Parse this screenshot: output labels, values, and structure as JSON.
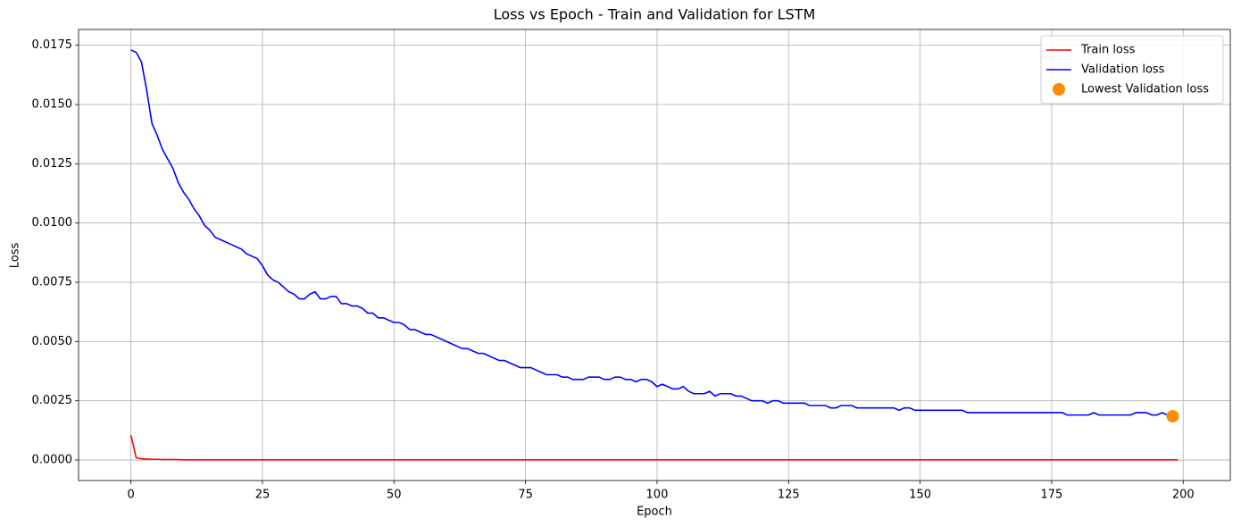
{
  "chart_data": {
    "type": "line",
    "title": "Loss vs Epoch - Train and Validation for LSTM",
    "xlabel": "Epoch",
    "ylabel": "Loss",
    "x": [
      0,
      1,
      2,
      3,
      4,
      5,
      6,
      7,
      8,
      9,
      10,
      11,
      12,
      13,
      14,
      15,
      16,
      17,
      18,
      19,
      20,
      21,
      22,
      23,
      24,
      25,
      26,
      27,
      28,
      29,
      30,
      31,
      32,
      33,
      34,
      35,
      36,
      37,
      38,
      39,
      40,
      41,
      42,
      43,
      44,
      45,
      46,
      47,
      48,
      49,
      50,
      51,
      52,
      53,
      54,
      55,
      56,
      57,
      58,
      59,
      60,
      61,
      62,
      63,
      64,
      65,
      66,
      67,
      68,
      69,
      70,
      71,
      72,
      73,
      74,
      75,
      76,
      77,
      78,
      79,
      80,
      81,
      82,
      83,
      84,
      85,
      86,
      87,
      88,
      89,
      90,
      91,
      92,
      93,
      94,
      95,
      96,
      97,
      98,
      99,
      100,
      101,
      102,
      103,
      104,
      105,
      106,
      107,
      108,
      109,
      110,
      111,
      112,
      113,
      114,
      115,
      116,
      117,
      118,
      119,
      120,
      121,
      122,
      123,
      124,
      125,
      126,
      127,
      128,
      129,
      130,
      131,
      132,
      133,
      134,
      135,
      136,
      137,
      138,
      139,
      140,
      141,
      142,
      143,
      144,
      145,
      146,
      147,
      148,
      149,
      150,
      151,
      152,
      153,
      154,
      155,
      156,
      157,
      158,
      159,
      160,
      161,
      162,
      163,
      164,
      165,
      166,
      167,
      168,
      169,
      170,
      171,
      172,
      173,
      174,
      175,
      176,
      177,
      178,
      179,
      180,
      181,
      182,
      183,
      184,
      185,
      186,
      187,
      188,
      189,
      190,
      191,
      192,
      193,
      194,
      195,
      196,
      197,
      198,
      199
    ],
    "series": [
      {
        "name": "Train loss",
        "color": "#ff0000",
        "values": [
          0.00105,
          0.0001,
          5e-05,
          4e-05,
          3e-05,
          3e-05,
          2e-05,
          2e-05,
          2e-05,
          2e-05,
          1e-05,
          1e-05,
          1e-05,
          1e-05,
          1e-05,
          1e-05,
          1e-05,
          1e-05,
          1e-05,
          1e-05,
          1e-05,
          1e-05,
          1e-05,
          1e-05,
          1e-05,
          1e-05,
          1e-05,
          1e-05,
          1e-05,
          1e-05,
          1e-05,
          1e-05,
          1e-05,
          1e-05,
          1e-05,
          1e-05,
          1e-05,
          1e-05,
          1e-05,
          1e-05,
          1e-05,
          1e-05,
          1e-05,
          1e-05,
          1e-05,
          1e-05,
          1e-05,
          1e-05,
          1e-05,
          1e-05,
          1e-05,
          1e-05,
          1e-05,
          1e-05,
          1e-05,
          1e-05,
          1e-05,
          1e-05,
          1e-05,
          1e-05,
          1e-05,
          1e-05,
          1e-05,
          1e-05,
          1e-05,
          1e-05,
          1e-05,
          1e-05,
          1e-05,
          1e-05,
          1e-05,
          1e-05,
          1e-05,
          1e-05,
          1e-05,
          1e-05,
          1e-05,
          1e-05,
          1e-05,
          1e-05,
          1e-05,
          1e-05,
          1e-05,
          1e-05,
          1e-05,
          1e-05,
          1e-05,
          1e-05,
          1e-05,
          1e-05,
          1e-05,
          1e-05,
          1e-05,
          1e-05,
          1e-05,
          1e-05,
          1e-05,
          1e-05,
          1e-05,
          1e-05,
          1e-05,
          1e-05,
          1e-05,
          1e-05,
          1e-05,
          1e-05,
          1e-05,
          1e-05,
          1e-05,
          1e-05,
          1e-05,
          1e-05,
          1e-05,
          1e-05,
          1e-05,
          1e-05,
          1e-05,
          1e-05,
          1e-05,
          1e-05,
          1e-05,
          1e-05,
          1e-05,
          1e-05,
          1e-05,
          1e-05,
          1e-05,
          1e-05,
          1e-05,
          1e-05,
          1e-05,
          1e-05,
          1e-05,
          1e-05,
          1e-05,
          1e-05,
          1e-05,
          1e-05,
          1e-05,
          1e-05,
          1e-05,
          1e-05,
          1e-05,
          1e-05,
          1e-05,
          1e-05,
          1e-05,
          1e-05,
          1e-05,
          1e-05,
          1e-05,
          1e-05,
          1e-05,
          1e-05,
          1e-05,
          1e-05,
          1e-05,
          1e-05,
          1e-05,
          1e-05,
          1e-05,
          1e-05,
          1e-05,
          1e-05,
          1e-05,
          1e-05,
          1e-05,
          1e-05,
          1e-05,
          1e-05,
          1e-05,
          1e-05,
          1e-05,
          1e-05,
          1e-05,
          1e-05,
          1e-05,
          1e-05,
          1e-05,
          1e-05,
          1e-05,
          1e-05,
          1e-05,
          1e-05,
          1e-05,
          1e-05,
          1e-05,
          1e-05,
          1e-05,
          1e-05,
          1e-05,
          1e-05,
          1e-05,
          1e-05,
          1e-05,
          1e-05,
          1e-05,
          1e-05,
          1e-05,
          1e-05
        ]
      },
      {
        "name": "Validation loss",
        "color": "#0000ff",
        "values": [
          0.0173,
          0.0172,
          0.0168,
          0.0156,
          0.0142,
          0.0137,
          0.0131,
          0.0127,
          0.0123,
          0.0117,
          0.0113,
          0.011,
          0.0106,
          0.0103,
          0.0099,
          0.0097,
          0.0094,
          0.0093,
          0.0092,
          0.0091,
          0.009,
          0.0089,
          0.0087,
          0.0086,
          0.0085,
          0.0082,
          0.0078,
          0.0076,
          0.0075,
          0.0073,
          0.0071,
          0.007,
          0.0068,
          0.0068,
          0.007,
          0.0071,
          0.0068,
          0.0068,
          0.0069,
          0.0069,
          0.0066,
          0.0066,
          0.0065,
          0.0065,
          0.0064,
          0.0062,
          0.0062,
          0.006,
          0.006,
          0.0059,
          0.0058,
          0.0058,
          0.0057,
          0.0055,
          0.0055,
          0.0054,
          0.0053,
          0.0053,
          0.0052,
          0.0051,
          0.005,
          0.0049,
          0.0048,
          0.0047,
          0.0047,
          0.0046,
          0.0045,
          0.0045,
          0.0044,
          0.0043,
          0.0042,
          0.0042,
          0.0041,
          0.004,
          0.0039,
          0.0039,
          0.0039,
          0.0038,
          0.0037,
          0.0036,
          0.0036,
          0.0036,
          0.0035,
          0.0035,
          0.0034,
          0.0034,
          0.0034,
          0.0035,
          0.0035,
          0.0035,
          0.0034,
          0.0034,
          0.0035,
          0.0035,
          0.0034,
          0.0034,
          0.0033,
          0.0034,
          0.0034,
          0.0033,
          0.0031,
          0.0032,
          0.0031,
          0.003,
          0.003,
          0.0031,
          0.0029,
          0.0028,
          0.0028,
          0.0028,
          0.0029,
          0.0027,
          0.0028,
          0.0028,
          0.0028,
          0.0027,
          0.0027,
          0.0026,
          0.0025,
          0.0025,
          0.0025,
          0.0024,
          0.0025,
          0.0025,
          0.0024,
          0.0024,
          0.0024,
          0.0024,
          0.0024,
          0.0023,
          0.0023,
          0.0023,
          0.0023,
          0.0022,
          0.0022,
          0.0023,
          0.0023,
          0.0023,
          0.0022,
          0.0022,
          0.0022,
          0.0022,
          0.0022,
          0.0022,
          0.0022,
          0.0022,
          0.0021,
          0.0022,
          0.0022,
          0.0021,
          0.0021,
          0.0021,
          0.0021,
          0.0021,
          0.0021,
          0.0021,
          0.0021,
          0.0021,
          0.0021,
          0.002,
          0.002,
          0.002,
          0.002,
          0.002,
          0.002,
          0.002,
          0.002,
          0.002,
          0.002,
          0.002,
          0.002,
          0.002,
          0.002,
          0.002,
          0.002,
          0.002,
          0.002,
          0.002,
          0.0019,
          0.0019,
          0.0019,
          0.0019,
          0.0019,
          0.002,
          0.0019,
          0.0019,
          0.0019,
          0.0019,
          0.0019,
          0.0019,
          0.0019,
          0.002,
          0.002,
          0.002,
          0.0019,
          0.0019,
          0.002,
          0.0019,
          0.00185,
          0.0019
        ]
      },
      {
        "name": "Lowest Validation loss",
        "type": "scatter",
        "color": "#ff8c00",
        "x": [
          198
        ],
        "values": [
          0.00185
        ]
      }
    ],
    "xlim": [
      -9.95,
      208.95
    ],
    "xticks": [
      0,
      25,
      50,
      75,
      100,
      125,
      150,
      175,
      200
    ],
    "ylim": [
      -0.000865,
      0.018165
    ],
    "yticks": [
      {
        "value": 0,
        "label": "0.0000"
      },
      0.0025,
      {
        "value": 0.005,
        "label": "0.0050"
      },
      0.0075,
      {
        "value": 0.01,
        "label": "0.0100"
      },
      0.0125,
      {
        "value": 0.015,
        "label": "0.0150"
      },
      0.0175
    ],
    "grid": true,
    "legend": "upper right"
  }
}
